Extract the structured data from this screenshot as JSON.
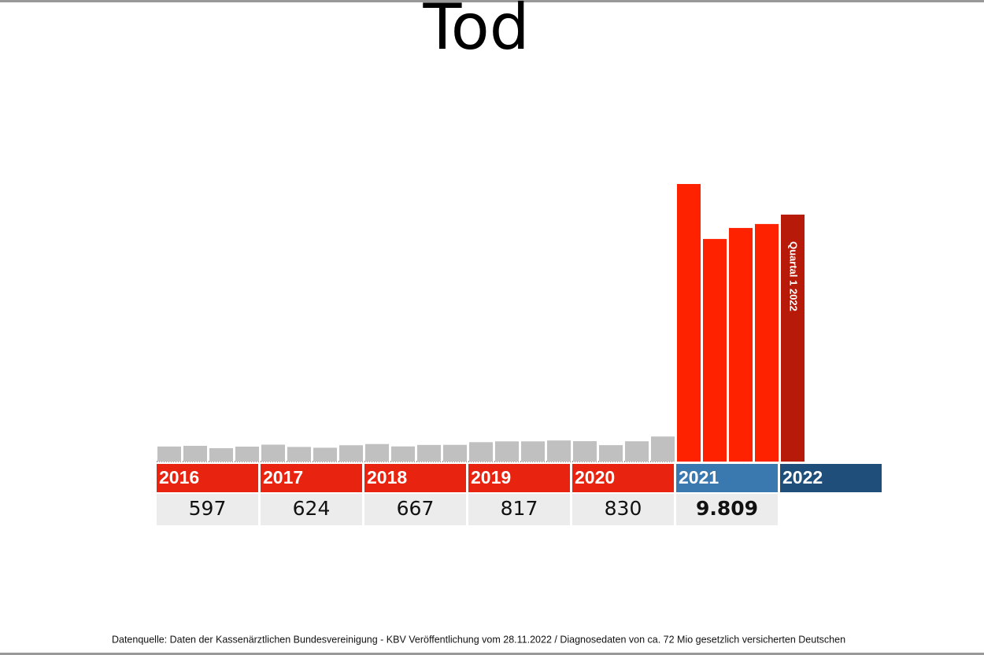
{
  "chart_data": {
    "type": "bar",
    "title": "Tod",
    "years": [
      {
        "label": "2016",
        "label_color": "#e8230f",
        "bar_color": "#c0c0c0",
        "quarters": [
          152,
          159,
          135,
          151
        ],
        "total": 597
      },
      {
        "label": "2017",
        "label_color": "#e8230f",
        "bar_color": "#c0c0c0",
        "quarters": [
          171,
          148,
          140,
          165
        ],
        "total": 624
      },
      {
        "label": "2018",
        "label_color": "#e8230f",
        "bar_color": "#c0c0c0",
        "quarters": [
          177,
          153,
          168,
          169
        ],
        "total": 667
      },
      {
        "label": "2019",
        "label_color": "#e8230f",
        "bar_color": "#c0c0c0",
        "quarters": [
          196,
          204,
          204,
          213
        ],
        "total": 817
      },
      {
        "label": "2020",
        "label_color": "#e8230f",
        "bar_color": "#c0c0c0",
        "quarters": [
          206,
          166,
          205,
          253
        ],
        "total": 830
      },
      {
        "label": "2021",
        "label_color": "#3a78b0",
        "bar_color": "#ff2200",
        "quarters": [
          2803,
          2248,
          2359,
          2399
        ],
        "total": {
          "value": 9809,
          "label": "9.809"
        },
        "total_color": "#ff0000"
      },
      {
        "label": "2022",
        "label_color": "#1f4e7a",
        "bar_color": "#b81a0a",
        "quarters": [
          2494
        ]
      }
    ],
    "annotation": "Quartal 1 2022",
    "source": "Datenquelle: Daten der Kassenärztlichen Bundesvereinigung - KBV Veröffentlichung vom 28.11.2022 / Diagnosedaten von ca. 72 Mio gesetzlich versicherten Deutschen"
  }
}
